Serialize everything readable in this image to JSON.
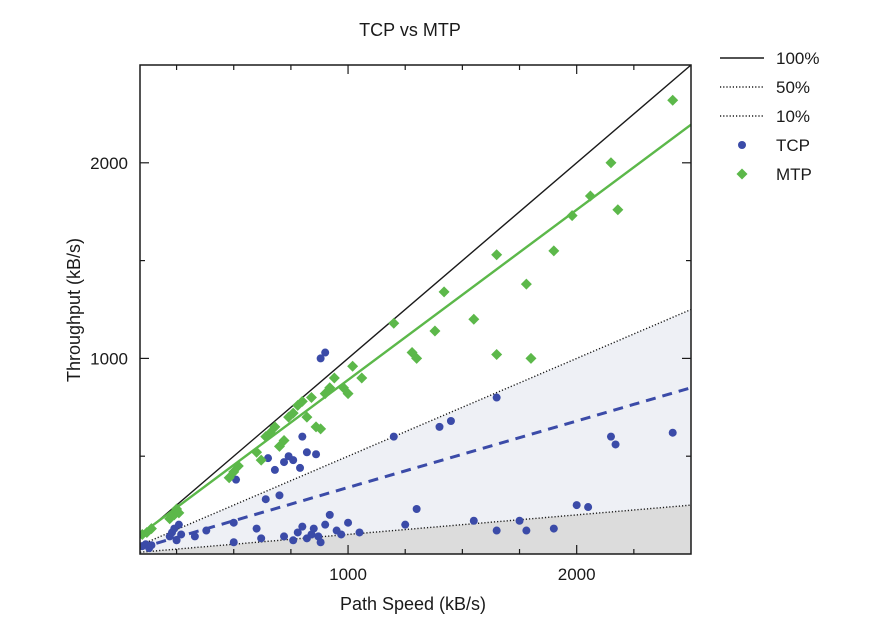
{
  "chart_data": {
    "type": "scatter",
    "title": "TCP vs MTP",
    "xlabel": "Path Speed (kB/s)",
    "ylabel": "Throughput (kB/s)",
    "xlim": [
      90,
      2500
    ],
    "ylim": [
      0,
      2500
    ],
    "x_ticks": [
      1000,
      2000
    ],
    "y_ticks": [
      1000,
      2000
    ],
    "x_tick_labels": [
      "1000",
      "2000"
    ],
    "y_tick_labels": [
      "1000",
      "2000"
    ],
    "grid": false,
    "legend_position": "right",
    "reference_lines": [
      {
        "name": "100%",
        "slope": 1.0,
        "style": "solid",
        "color": "#1a1a1a"
      },
      {
        "name": "50%",
        "slope": 0.5,
        "style": "dotted",
        "color": "#1a1a1a"
      },
      {
        "name": "10%",
        "slope": 0.1,
        "style": "dotted",
        "color": "#1a1a1a"
      }
    ],
    "shaded_regions": [
      {
        "slope_low": 0.1,
        "slope_high": 0.5,
        "color": "#eef0f5"
      },
      {
        "slope_low": 0,
        "slope_high": 0.1,
        "color": "#dcdcdc"
      }
    ],
    "fit_lines": [
      {
        "series": "TCP",
        "slope": 0.34,
        "intercept": 0,
        "style": "dashed",
        "color": "#3b4ba8"
      },
      {
        "series": "MTP",
        "slope": 0.87,
        "intercept": 20,
        "style": "solid",
        "color": "#5cb84a"
      }
    ],
    "series": [
      {
        "name": "TCP",
        "marker": "circle",
        "color": "#3b4ba8",
        "points": [
          [
            100,
            40
          ],
          [
            115,
            50
          ],
          [
            130,
            30
          ],
          [
            140,
            45
          ],
          [
            220,
            90
          ],
          [
            230,
            110
          ],
          [
            240,
            130
          ],
          [
            250,
            70
          ],
          [
            260,
            150
          ],
          [
            270,
            100
          ],
          [
            330,
            90
          ],
          [
            380,
            120
          ],
          [
            500,
            60
          ],
          [
            500,
            160
          ],
          [
            510,
            380
          ],
          [
            600,
            130
          ],
          [
            620,
            80
          ],
          [
            640,
            280
          ],
          [
            700,
            300
          ],
          [
            650,
            490
          ],
          [
            680,
            430
          ],
          [
            720,
            470
          ],
          [
            740,
            500
          ],
          [
            760,
            480
          ],
          [
            790,
            440
          ],
          [
            800,
            600
          ],
          [
            820,
            520
          ],
          [
            860,
            510
          ],
          [
            880,
            1000
          ],
          [
            900,
            1030
          ],
          [
            720,
            90
          ],
          [
            760,
            70
          ],
          [
            780,
            110
          ],
          [
            800,
            140
          ],
          [
            820,
            80
          ],
          [
            840,
            100
          ],
          [
            850,
            130
          ],
          [
            870,
            90
          ],
          [
            880,
            60
          ],
          [
            900,
            150
          ],
          [
            920,
            200
          ],
          [
            950,
            120
          ],
          [
            970,
            100
          ],
          [
            1000,
            160
          ],
          [
            1050,
            110
          ],
          [
            1200,
            600
          ],
          [
            1250,
            150
          ],
          [
            1300,
            230
          ],
          [
            1400,
            650
          ],
          [
            1450,
            680
          ],
          [
            1550,
            170
          ],
          [
            1650,
            800
          ],
          [
            1650,
            120
          ],
          [
            1750,
            170
          ],
          [
            1780,
            120
          ],
          [
            1900,
            130
          ],
          [
            2000,
            250
          ],
          [
            2050,
            240
          ],
          [
            2150,
            600
          ],
          [
            2170,
            560
          ],
          [
            2420,
            620
          ]
        ]
      },
      {
        "name": "MTP",
        "marker": "diamond",
        "color": "#5cb84a",
        "points": [
          [
            100,
            100
          ],
          [
            120,
            110
          ],
          [
            140,
            130
          ],
          [
            220,
            180
          ],
          [
            240,
            200
          ],
          [
            250,
            230
          ],
          [
            260,
            210
          ],
          [
            480,
            390
          ],
          [
            500,
            420
          ],
          [
            520,
            450
          ],
          [
            600,
            520
          ],
          [
            620,
            480
          ],
          [
            640,
            600
          ],
          [
            660,
            620
          ],
          [
            680,
            650
          ],
          [
            700,
            550
          ],
          [
            720,
            580
          ],
          [
            740,
            700
          ],
          [
            760,
            720
          ],
          [
            780,
            760
          ],
          [
            800,
            780
          ],
          [
            820,
            700
          ],
          [
            840,
            800
          ],
          [
            860,
            650
          ],
          [
            880,
            640
          ],
          [
            900,
            820
          ],
          [
            920,
            850
          ],
          [
            940,
            900
          ],
          [
            980,
            850
          ],
          [
            1000,
            820
          ],
          [
            1020,
            960
          ],
          [
            1060,
            900
          ],
          [
            1200,
            1180
          ],
          [
            1280,
            1030
          ],
          [
            1300,
            1000
          ],
          [
            1380,
            1140
          ],
          [
            1420,
            1340
          ],
          [
            1550,
            1200
          ],
          [
            1650,
            1530
          ],
          [
            1650,
            1020
          ],
          [
            1780,
            1380
          ],
          [
            1800,
            1000
          ],
          [
            1900,
            1550
          ],
          [
            1980,
            1730
          ],
          [
            2060,
            1830
          ],
          [
            2150,
            2000
          ],
          [
            2180,
            1760
          ],
          [
            2420,
            2320
          ]
        ]
      }
    ]
  },
  "legend": [
    {
      "label": "100%",
      "kind": "line-solid",
      "color": "#1a1a1a"
    },
    {
      "label": "50%",
      "kind": "line-dotted",
      "color": "#1a1a1a"
    },
    {
      "label": "10%",
      "kind": "line-dotted",
      "color": "#1a1a1a"
    },
    {
      "label": "TCP",
      "kind": "circle",
      "color": "#3b4ba8"
    },
    {
      "label": "MTP",
      "kind": "diamond",
      "color": "#5cb84a"
    }
  ]
}
